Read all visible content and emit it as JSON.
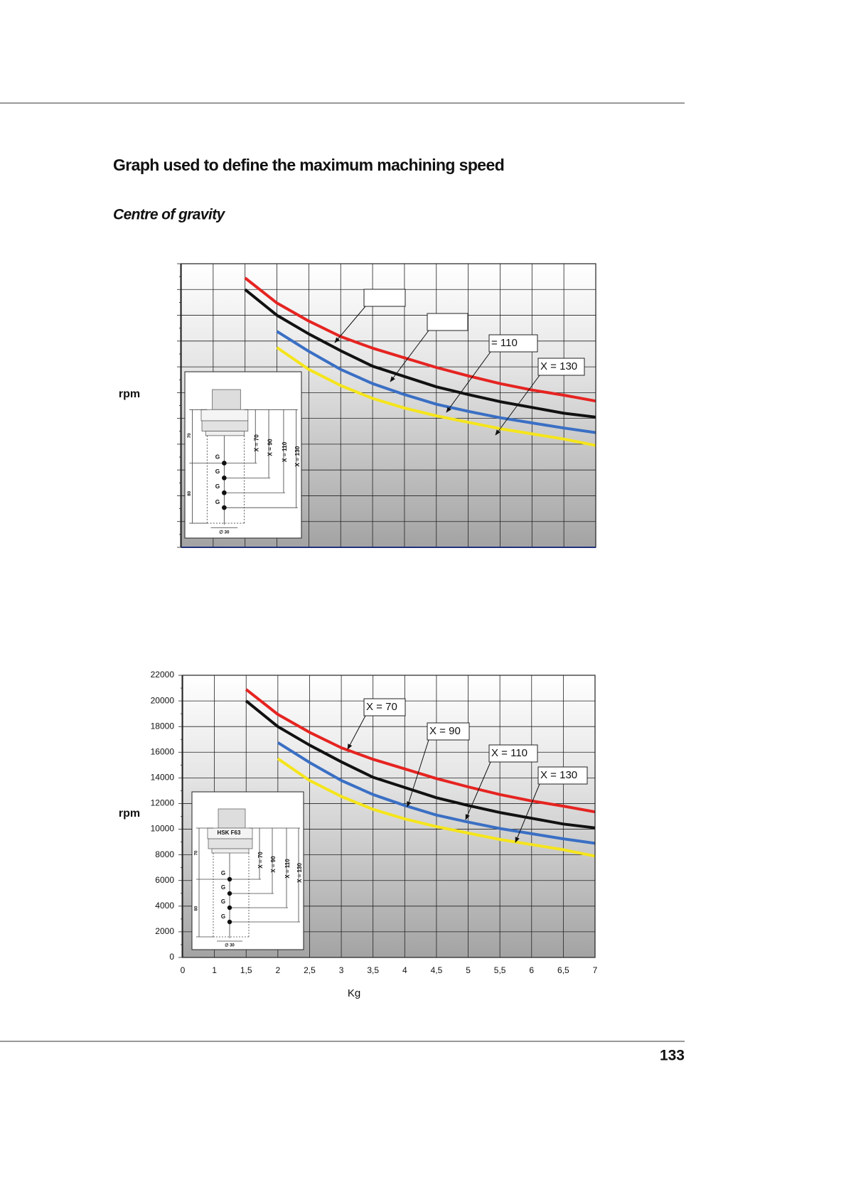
{
  "header": {
    "title": "Graph used to define the maximum machining speed",
    "subtitle": "Centre of gravity"
  },
  "chart_data": [
    {
      "type": "line",
      "y_label": "rpm",
      "callouts": [
        null,
        null,
        "= 110",
        "X = 130"
      ],
      "inset": {
        "heights": [
          "70",
          "80"
        ],
        "distances": [
          "X = 70",
          "X = 90",
          "X = 110",
          "X = 130"
        ],
        "points": [
          "G",
          "G",
          "G",
          "G"
        ],
        "diameter": "∅ 30"
      }
    },
    {
      "type": "line",
      "y_label": "rpm",
      "x_label": "Kg",
      "categories": [
        "0",
        "1",
        "1,5",
        "2",
        "2,5",
        "3",
        "3,5",
        "4",
        "4,5",
        "5",
        "5,5",
        "6",
        "6,5",
        "7"
      ],
      "ylim": [
        0,
        22000
      ],
      "yticks": [
        0,
        2000,
        4000,
        6000,
        8000,
        10000,
        12000,
        14000,
        16000,
        18000,
        20000,
        22000
      ],
      "grid": true,
      "series": [
        {
          "name": "X = 70",
          "color": "#e52421",
          "values": [
            null,
            null,
            20900,
            18950,
            17550,
            16350,
            15450,
            14700,
            13950,
            13300,
            12700,
            12200,
            11800,
            11350
          ]
        },
        {
          "name": "X = 90",
          "color": "#111111",
          "values": [
            null,
            null,
            20000,
            18000,
            16550,
            15250,
            14050,
            13250,
            12450,
            11850,
            11300,
            10850,
            10400,
            10100
          ]
        },
        {
          "name": "X = 110",
          "color": "#3a6fc4",
          "values": [
            null,
            null,
            null,
            16750,
            15200,
            13800,
            12700,
            11850,
            11100,
            10550,
            10050,
            9650,
            9250,
            8900
          ]
        },
        {
          "name": "X = 130",
          "color": "#f5e51b",
          "values": [
            null,
            null,
            null,
            15500,
            13800,
            12550,
            11550,
            10800,
            10200,
            9700,
            9200,
            8800,
            8400,
            7900
          ]
        }
      ],
      "inset": {
        "label": "HSK F63",
        "heights": [
          "70",
          "80"
        ],
        "distances": [
          "X = 70",
          "X = 90",
          "X = 110",
          "X = 130"
        ],
        "points": [
          "G",
          "G",
          "G",
          "G"
        ],
        "diameter": "∅ 30"
      }
    }
  ],
  "page_number": "133"
}
